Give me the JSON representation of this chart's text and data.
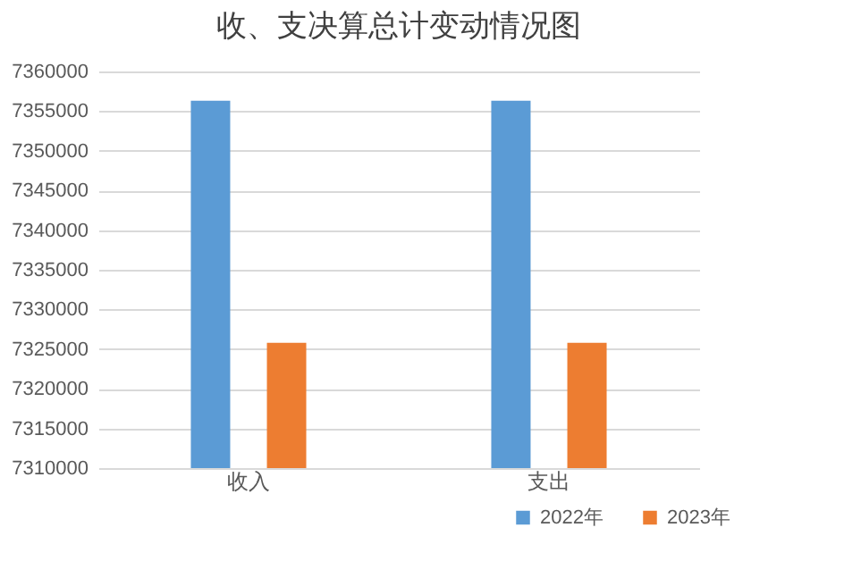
{
  "chart_data": {
    "type": "bar",
    "title": "收、支决算总计变动情况图",
    "categories": [
      "收入",
      "支出"
    ],
    "series": [
      {
        "name": "2022年",
        "color": "#5b9bd5",
        "values": [
          7356300,
          7356300
        ]
      },
      {
        "name": "2023年",
        "color": "#ed7d31",
        "values": [
          7325800,
          7325800
        ]
      }
    ],
    "ylim": [
      7310000,
      7360000
    ],
    "yticks": [
      7310000,
      7315000,
      7320000,
      7325000,
      7330000,
      7335000,
      7340000,
      7345000,
      7350000,
      7355000,
      7360000
    ],
    "grid": "y",
    "legend": "bottom right"
  }
}
